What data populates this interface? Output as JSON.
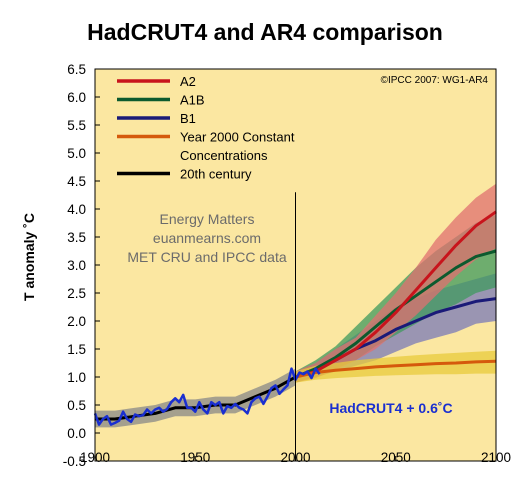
{
  "chart_data": {
    "type": "line",
    "title": "HadCRUT4 and AR4 comparison",
    "ylabel": "T anomaly ˚C",
    "xlabel": "",
    "xlim": [
      1900,
      2100
    ],
    "ylim": [
      -0.5,
      6.5
    ],
    "x_ticks": [
      "1900",
      "1950",
      "2000",
      "2050",
      "2100"
    ],
    "y_ticks": [
      "-0.5",
      "0.0",
      "0.5",
      "1.0",
      "1.5",
      "2.0",
      "2.5",
      "3.0",
      "3.5",
      "4.0",
      "4.5",
      "5.0",
      "5.5",
      "6.0",
      "6.5"
    ],
    "background": "#fbe7a1",
    "grid": false,
    "legend_position": "top-left",
    "credit": "©IPCC  2007: WG1-AR4",
    "watermark": [
      "Energy Matters",
      "euanmearns.com",
      "MET CRU and IPCC data"
    ],
    "annotation": "HadCRUT4 + 0.6˚C",
    "vline_x": 2000,
    "legend": [
      {
        "label": "A2",
        "color": "#c8141c"
      },
      {
        "label": "A1B",
        "color": "#0c5a2e"
      },
      {
        "label": "B1",
        "color": "#1a1a78"
      },
      {
        "label": "Year 2000 Constant",
        "color": "#d55a0c"
      },
      {
        "label": "Concentrations",
        "color": null
      },
      {
        "label": "20th century",
        "color": "#000000"
      }
    ],
    "series": [
      {
        "name": "20th century",
        "color": "#000000",
        "band_color": "#888888",
        "x": [
          1900,
          1910,
          1920,
          1930,
          1940,
          1950,
          1960,
          1970,
          1980,
          1990,
          2000
        ],
        "y": [
          0.25,
          0.25,
          0.3,
          0.35,
          0.45,
          0.45,
          0.5,
          0.5,
          0.65,
          0.8,
          1.0
        ],
        "lo": [
          0.1,
          0.1,
          0.15,
          0.2,
          0.3,
          0.3,
          0.35,
          0.35,
          0.5,
          0.65,
          0.85
        ],
        "hi": [
          0.4,
          0.4,
          0.45,
          0.5,
          0.6,
          0.6,
          0.65,
          0.65,
          0.8,
          0.95,
          1.15
        ]
      },
      {
        "name": "B1",
        "color": "#1a1a78",
        "band_color": "#7a7ab8",
        "x": [
          2000,
          2010,
          2020,
          2030,
          2040,
          2050,
          2060,
          2070,
          2080,
          2090,
          2100
        ],
        "y": [
          1.0,
          1.12,
          1.3,
          1.5,
          1.65,
          1.85,
          2.0,
          2.15,
          2.25,
          2.35,
          2.4
        ],
        "lo": [
          0.9,
          1.0,
          1.1,
          1.2,
          1.3,
          1.45,
          1.6,
          1.7,
          1.8,
          1.95,
          2.0
        ],
        "hi": [
          1.1,
          1.25,
          1.5,
          1.75,
          2.0,
          2.25,
          2.4,
          2.55,
          2.65,
          2.75,
          2.85
        ]
      },
      {
        "name": "A1B",
        "color": "#0c5a2e",
        "band_color": "#3f9a5e",
        "x": [
          2000,
          2010,
          2020,
          2030,
          2040,
          2050,
          2060,
          2070,
          2080,
          2090,
          2100
        ],
        "y": [
          1.0,
          1.15,
          1.35,
          1.6,
          1.9,
          2.2,
          2.45,
          2.7,
          2.95,
          3.15,
          3.25
        ],
        "lo": [
          0.9,
          1.0,
          1.15,
          1.3,
          1.55,
          1.75,
          1.95,
          2.15,
          2.3,
          2.5,
          2.6
        ],
        "hi": [
          1.1,
          1.3,
          1.55,
          1.9,
          2.25,
          2.6,
          2.95,
          3.25,
          3.5,
          3.75,
          3.9
        ]
      },
      {
        "name": "A2",
        "color": "#c8141c",
        "band_color": "#e07070",
        "x": [
          2000,
          2010,
          2020,
          2030,
          2040,
          2050,
          2060,
          2070,
          2080,
          2090,
          2100
        ],
        "y": [
          1.0,
          1.1,
          1.3,
          1.5,
          1.8,
          2.15,
          2.55,
          2.95,
          3.35,
          3.7,
          3.95
        ],
        "lo": [
          0.9,
          0.98,
          1.12,
          1.3,
          1.5,
          1.8,
          2.1,
          2.45,
          2.8,
          3.1,
          3.3
        ],
        "hi": [
          1.1,
          1.25,
          1.5,
          1.7,
          2.1,
          2.5,
          2.95,
          3.45,
          3.85,
          4.2,
          4.45
        ]
      },
      {
        "name": "Year 2000 Constant Concentrations",
        "color": "#d55a0c",
        "band_color": "#e8cb3c",
        "x": [
          2000,
          2010,
          2020,
          2030,
          2040,
          2050,
          2060,
          2070,
          2080,
          2090,
          2100
        ],
        "y": [
          1.0,
          1.08,
          1.12,
          1.15,
          1.18,
          1.2,
          1.22,
          1.24,
          1.25,
          1.27,
          1.28
        ],
        "lo": [
          0.9,
          0.95,
          0.98,
          1.0,
          1.02,
          1.03,
          1.04,
          1.05,
          1.05,
          1.06,
          1.06
        ],
        "hi": [
          1.1,
          1.2,
          1.25,
          1.3,
          1.33,
          1.36,
          1.39,
          1.41,
          1.43,
          1.45,
          1.47
        ]
      },
      {
        "name": "HadCRUT4 + 0.6˚C",
        "color": "#1a2fd0",
        "band_color": null,
        "x": [
          1900,
          1902,
          1904,
          1906,
          1908,
          1910,
          1912,
          1914,
          1916,
          1918,
          1920,
          1922,
          1924,
          1926,
          1928,
          1930,
          1932,
          1934,
          1936,
          1938,
          1940,
          1942,
          1944,
          1946,
          1948,
          1950,
          1952,
          1954,
          1956,
          1958,
          1960,
          1962,
          1964,
          1966,
          1968,
          1970,
          1972,
          1974,
          1976,
          1978,
          1980,
          1982,
          1984,
          1986,
          1988,
          1990,
          1992,
          1994,
          1996,
          1998,
          2000,
          2002,
          2004,
          2006,
          2008,
          2010,
          2012
        ],
        "y": [
          0.35,
          0.15,
          0.25,
          0.3,
          0.15,
          0.18,
          0.22,
          0.38,
          0.25,
          0.2,
          0.33,
          0.3,
          0.32,
          0.42,
          0.35,
          0.42,
          0.45,
          0.38,
          0.43,
          0.55,
          0.62,
          0.55,
          0.68,
          0.45,
          0.45,
          0.38,
          0.55,
          0.42,
          0.35,
          0.55,
          0.5,
          0.55,
          0.35,
          0.48,
          0.45,
          0.52,
          0.45,
          0.42,
          0.35,
          0.55,
          0.62,
          0.65,
          0.52,
          0.65,
          0.8,
          0.85,
          0.7,
          0.78,
          0.85,
          1.15,
          0.95,
          1.08,
          1.05,
          1.1,
          0.98,
          1.15,
          1.05
        ]
      }
    ]
  }
}
